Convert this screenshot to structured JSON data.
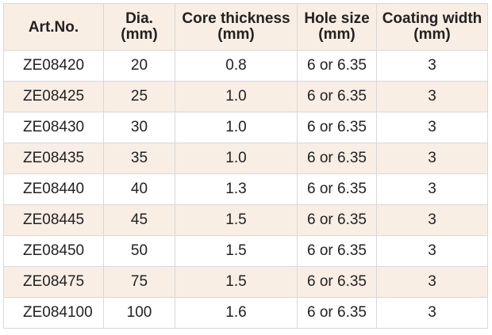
{
  "table": {
    "headers": [
      {
        "line1": "Art.No.",
        "line2": ""
      },
      {
        "line1": "Dia.",
        "line2": "(mm)"
      },
      {
        "line1": "Core thickness",
        "line2": "(mm)"
      },
      {
        "line1": "Hole size",
        "line2": "(mm)"
      },
      {
        "line1": "Coating width",
        "line2": "(mm)"
      }
    ],
    "rows": [
      [
        "ZE08420",
        "20",
        "0.8",
        "6 or 6.35",
        "3"
      ],
      [
        "ZE08425",
        "25",
        "1.0",
        "6 or 6.35",
        "3"
      ],
      [
        "ZE08430",
        "30",
        "1.0",
        "6 or 6.35",
        "3"
      ],
      [
        "ZE08435",
        "35",
        "1.0",
        "6 or 6.35",
        "3"
      ],
      [
        "ZE08440",
        "40",
        "1.3",
        "6 or 6.35",
        "3"
      ],
      [
        "ZE08445",
        "45",
        "1.5",
        "6 or 6.35",
        "3"
      ],
      [
        "ZE08450",
        "50",
        "1.5",
        "6 or 6.35",
        "3"
      ],
      [
        "ZE08475",
        "75",
        "1.5",
        "6 or 6.35",
        "3"
      ],
      [
        "ZE084100",
        "100",
        "1.6",
        "6 or 6.35",
        "3"
      ]
    ]
  },
  "colors": {
    "header_bg": "#f8eee4",
    "stripe_bg": "#f8eee4",
    "border": "#d9d9d9",
    "text": "#222222"
  }
}
